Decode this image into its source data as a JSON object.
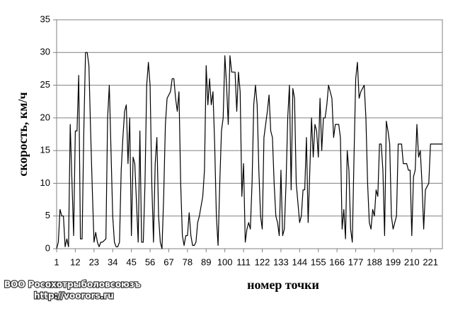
{
  "chart_data": {
    "type": "line",
    "xlabel": "номер точки",
    "ylabel": "скорость, км/ч",
    "x": [
      1,
      2,
      3,
      4,
      5,
      6,
      7,
      8,
      9,
      11,
      12,
      13,
      14,
      15,
      16,
      17,
      18,
      19,
      20,
      21,
      22,
      23,
      24,
      25,
      26,
      27,
      28,
      30,
      31,
      32,
      33,
      34,
      35,
      36,
      37,
      38,
      39,
      40,
      41,
      42,
      43,
      44,
      45,
      46,
      47,
      49,
      50,
      51,
      52,
      53,
      54,
      55,
      56,
      57,
      58,
      59,
      60,
      61,
      62,
      63,
      64,
      65,
      66,
      68,
      69,
      70,
      71,
      72,
      73,
      74,
      75,
      76,
      77,
      78,
      79,
      80,
      81,
      82,
      83,
      84,
      85,
      87,
      88,
      89,
      90,
      91,
      92,
      93,
      94,
      95,
      96,
      97,
      98,
      99,
      100,
      101,
      102,
      103,
      104,
      106,
      107,
      108,
      109,
      110,
      111,
      112,
      113,
      114,
      115,
      116,
      117,
      118,
      119,
      120,
      121,
      122,
      123,
      125,
      126,
      127,
      128,
      129,
      130,
      131,
      132,
      133,
      134,
      135,
      136,
      137,
      138,
      139,
      140,
      141,
      142,
      144,
      145,
      146,
      147,
      148,
      149,
      150,
      151,
      152,
      153,
      154,
      155,
      156,
      157,
      158,
      159,
      160,
      161,
      163,
      164,
      165,
      166,
      167,
      168,
      169,
      170,
      171,
      172,
      173,
      174,
      175,
      176,
      177,
      178,
      179,
      180,
      182,
      183,
      184,
      185,
      186,
      187,
      188,
      189,
      190,
      191,
      192,
      193,
      194,
      195,
      196,
      197,
      198,
      199,
      201,
      202,
      203,
      204,
      205,
      206,
      207,
      208,
      209,
      210,
      211,
      212,
      213,
      214,
      215,
      216,
      217,
      218,
      220,
      221,
      222,
      223,
      224,
      225,
      226,
      227,
      228
    ],
    "series": [
      {
        "color": "#000000",
        "values": [
          0,
          1,
          6,
          5,
          5,
          0.3,
          1.5,
          0.3,
          19,
          2,
          18,
          18,
          26.5,
          1.5,
          1.5,
          18,
          30,
          30,
          28,
          18,
          9,
          1,
          2.5,
          1,
          0.3,
          1,
          1,
          1.5,
          20,
          25,
          15,
          5,
          1,
          0.3,
          0.3,
          1,
          12,
          17,
          21,
          22,
          13,
          20,
          2,
          14,
          13,
          1,
          18,
          1,
          1,
          10,
          25,
          28.5,
          25,
          10,
          1,
          13,
          17,
          5,
          1,
          0,
          8,
          19,
          23,
          24,
          26,
          26,
          23,
          21,
          24,
          10,
          2,
          0.5,
          2,
          2,
          5.5,
          2,
          0.5,
          0.5,
          1,
          4,
          5,
          8,
          12,
          28,
          22,
          26,
          22,
          24,
          16,
          5,
          0.5,
          10,
          18,
          20,
          29.5,
          25,
          19,
          29.5,
          27,
          27,
          21,
          27,
          24,
          8,
          13,
          1,
          3,
          4,
          3,
          10,
          22,
          25,
          22,
          12,
          5,
          3,
          17,
          21,
          23.5,
          18,
          17,
          10,
          5,
          4,
          2,
          12,
          2,
          3,
          10,
          20,
          25,
          9,
          24.5,
          23,
          10,
          4,
          5,
          9,
          9,
          17,
          4,
          12,
          20,
          14,
          19,
          18,
          14,
          23,
          15,
          20,
          20,
          22,
          25,
          23,
          17,
          19,
          19,
          19,
          17,
          3,
          6,
          1.5,
          15,
          12,
          3,
          1,
          14,
          26,
          28.5,
          23,
          24,
          25,
          20,
          10,
          4,
          3,
          6,
          5,
          9,
          8,
          16,
          16,
          12,
          2,
          19.5,
          18,
          16,
          5,
          3,
          5,
          16,
          16,
          16,
          13,
          13,
          13,
          12,
          12,
          2,
          11,
          12,
          19,
          14,
          15,
          10,
          3,
          9,
          10,
          16,
          16,
          16,
          16,
          16,
          16,
          16,
          16
        ]
      }
    ],
    "xlim": [
      1,
      228
    ],
    "xticks": [
      1,
      12,
      23,
      34,
      45,
      56,
      67,
      78,
      89,
      100,
      111,
      122,
      133,
      144,
      155,
      166,
      177,
      188,
      199,
      210,
      221
    ],
    "ylim": [
      0,
      35
    ],
    "yticks": [
      0,
      5,
      10,
      15,
      20,
      25,
      30,
      35
    ],
    "grid": true,
    "watermark": [
      "ВОО Росохотрыболовсоюзъ",
      "http://voorors.ru"
    ]
  }
}
